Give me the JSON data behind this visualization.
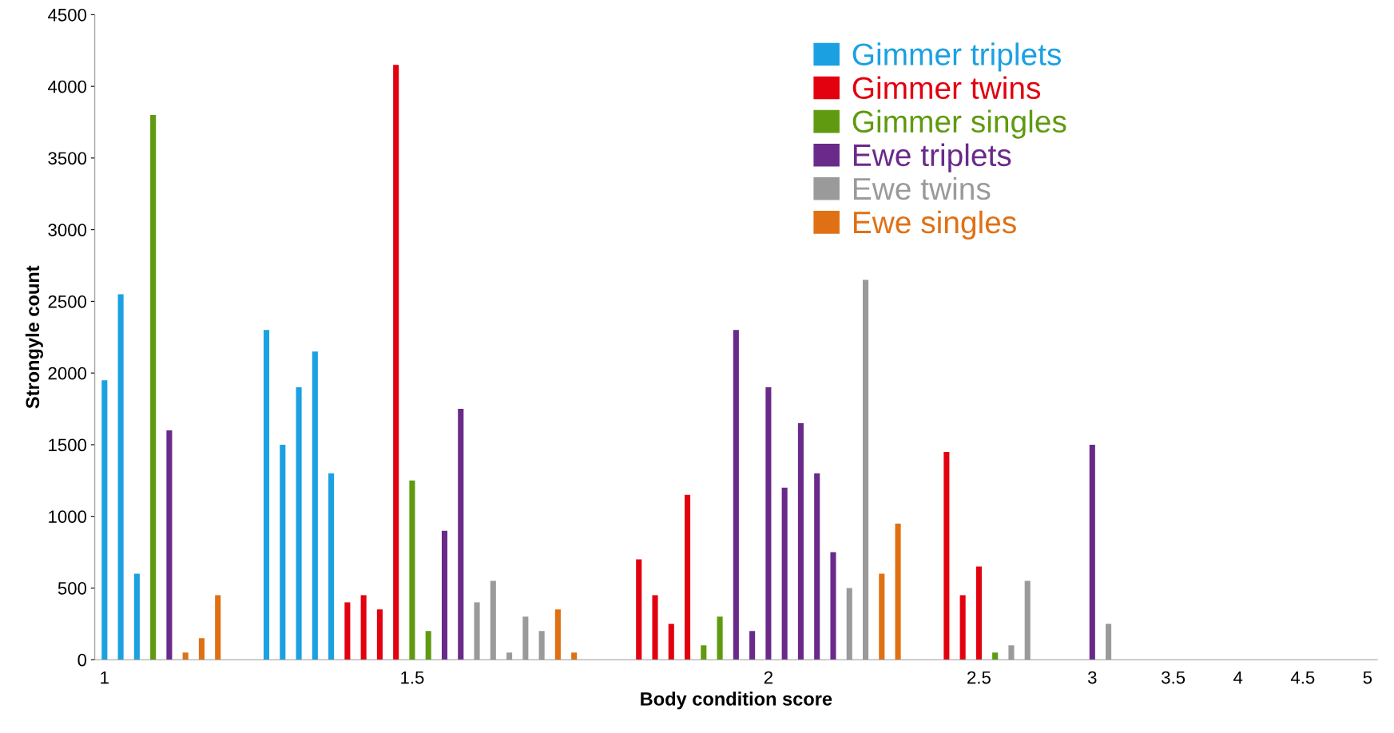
{
  "chart_data": {
    "type": "bar",
    "xlabel": "Body condition score",
    "ylabel": "Strongyle count",
    "categories": [
      "1",
      null,
      null,
      null,
      null,
      null,
      null,
      null,
      null,
      null,
      null,
      null,
      null,
      null,
      null,
      null,
      null,
      null,
      null,
      "1.5",
      null,
      null,
      null,
      null,
      null,
      null,
      null,
      null,
      null,
      null,
      null,
      null,
      null,
      null,
      null,
      null,
      null,
      null,
      null,
      null,
      null,
      "2",
      null,
      null,
      null,
      null,
      null,
      null,
      null,
      null,
      null,
      null,
      null,
      null,
      "2.5",
      null,
      null,
      null,
      null,
      null,
      null,
      "3",
      null,
      null,
      null,
      null,
      "3.5",
      null,
      null,
      null,
      "4",
      null,
      null,
      null,
      "4.5",
      null,
      null,
      null,
      "5"
    ],
    "series": [
      {
        "name": "Gimmer triplets",
        "color": "#1ba1e2",
        "values": [
          1950,
          2550,
          600,
          null,
          null,
          null,
          null,
          null,
          null,
          null,
          2300,
          1500,
          1900,
          2150,
          1300,
          null,
          null,
          null,
          null,
          null,
          null,
          null,
          null,
          null,
          null,
          null,
          null,
          null,
          null,
          null,
          null,
          null,
          null,
          null,
          null,
          null,
          null,
          null,
          null,
          null,
          null,
          null,
          null,
          null,
          null,
          null,
          null,
          null,
          null,
          null,
          null,
          null,
          null,
          null,
          null,
          null,
          null,
          null,
          null,
          null,
          null,
          null,
          null,
          null,
          null,
          null,
          null,
          null,
          null,
          null,
          null,
          null,
          null,
          null,
          null,
          null,
          null,
          null,
          null
        ]
      },
      {
        "name": "Gimmer twins",
        "color": "#e3000f",
        "values": [
          null,
          null,
          null,
          null,
          null,
          null,
          null,
          null,
          null,
          null,
          null,
          null,
          null,
          null,
          null,
          400,
          450,
          350,
          4150,
          null,
          null,
          null,
          null,
          null,
          null,
          null,
          null,
          null,
          null,
          null,
          null,
          null,
          null,
          700,
          450,
          250,
          1150,
          null,
          null,
          null,
          null,
          null,
          null,
          null,
          null,
          null,
          null,
          null,
          null,
          null,
          null,
          null,
          1450,
          450,
          650,
          null,
          null,
          null,
          null,
          null,
          null,
          null,
          null,
          null,
          null,
          null,
          null,
          null,
          null,
          null,
          null,
          null,
          null,
          null,
          null,
          null,
          null,
          null,
          null
        ]
      },
      {
        "name": "Gimmer singles",
        "color": "#5f9a10",
        "values": [
          null,
          null,
          null,
          3800,
          null,
          null,
          null,
          null,
          null,
          null,
          null,
          null,
          null,
          null,
          null,
          null,
          null,
          null,
          null,
          1250,
          200,
          null,
          null,
          null,
          null,
          null,
          null,
          null,
          null,
          null,
          null,
          null,
          null,
          null,
          null,
          null,
          null,
          100,
          300,
          null,
          null,
          null,
          null,
          null,
          null,
          null,
          null,
          null,
          null,
          null,
          null,
          null,
          null,
          null,
          null,
          50,
          null,
          null,
          null,
          null,
          null,
          null,
          null,
          null,
          null,
          null,
          null,
          null,
          null,
          null,
          null,
          null,
          null,
          null,
          null,
          null,
          null,
          null,
          null
        ]
      },
      {
        "name": "Ewe triplets",
        "color": "#6a2a8a",
        "values": [
          null,
          null,
          null,
          null,
          1600,
          null,
          null,
          null,
          null,
          null,
          null,
          null,
          null,
          null,
          null,
          null,
          null,
          null,
          null,
          null,
          null,
          900,
          1750,
          null,
          null,
          null,
          null,
          null,
          null,
          null,
          null,
          null,
          null,
          null,
          null,
          null,
          null,
          null,
          null,
          2300,
          200,
          1900,
          1200,
          1650,
          1300,
          750,
          null,
          null,
          null,
          null,
          null,
          null,
          null,
          null,
          null,
          null,
          null,
          null,
          null,
          null,
          null,
          1500,
          null,
          null,
          null,
          null,
          null,
          null,
          null,
          null,
          null,
          null,
          null,
          null,
          null,
          null,
          null,
          null,
          null
        ]
      },
      {
        "name": "Ewe twins",
        "color": "#9a9a9a",
        "values": [
          null,
          null,
          null,
          null,
          null,
          null,
          null,
          null,
          null,
          null,
          null,
          null,
          null,
          null,
          null,
          null,
          null,
          null,
          null,
          null,
          null,
          null,
          null,
          400,
          550,
          50,
          300,
          200,
          null,
          null,
          null,
          null,
          null,
          null,
          null,
          null,
          null,
          null,
          null,
          null,
          null,
          null,
          null,
          null,
          null,
          null,
          500,
          2650,
          null,
          null,
          null,
          null,
          null,
          null,
          null,
          null,
          100,
          550,
          null,
          null,
          null,
          null,
          250,
          null,
          null,
          null,
          null,
          null,
          null,
          null,
          null,
          null,
          null,
          null,
          null,
          null,
          null,
          null,
          null
        ]
      },
      {
        "name": "Ewe singles",
        "color": "#e07014",
        "values": [
          null,
          null,
          null,
          null,
          null,
          50,
          150,
          450,
          null,
          null,
          null,
          null,
          null,
          null,
          null,
          null,
          null,
          null,
          null,
          null,
          null,
          null,
          null,
          null,
          null,
          null,
          null,
          null,
          350,
          50,
          0,
          null,
          null,
          null,
          null,
          null,
          null,
          null,
          null,
          null,
          null,
          null,
          null,
          null,
          null,
          null,
          null,
          null,
          600,
          950,
          null,
          null,
          null,
          null,
          null,
          null,
          null,
          null,
          null,
          null,
          null,
          null,
          null,
          null,
          null,
          null,
          null,
          null,
          null,
          null,
          null,
          null,
          null,
          null,
          null,
          null,
          null,
          null,
          null
        ]
      }
    ],
    "ylim": [
      0,
      4500
    ],
    "yticks": [
      0,
      500,
      1000,
      1500,
      2000,
      2500,
      3000,
      3500,
      4000,
      4500
    ],
    "grid": false,
    "legend": "top right"
  }
}
